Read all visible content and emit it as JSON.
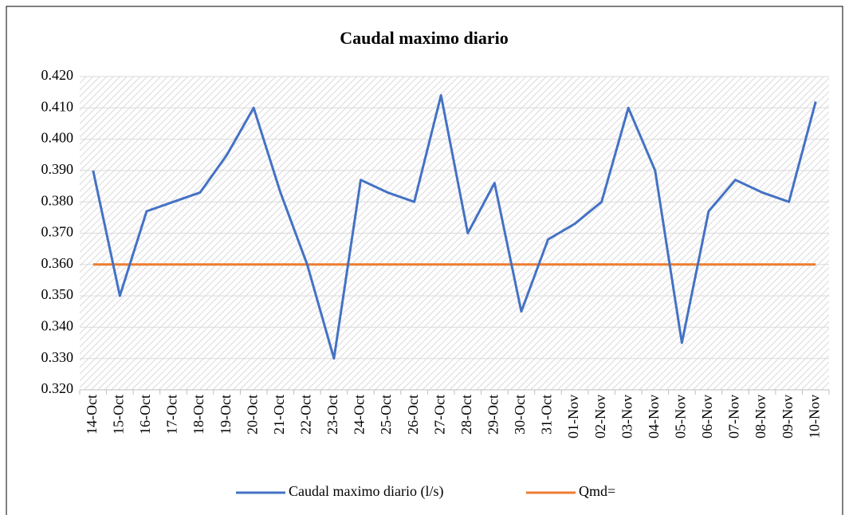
{
  "chart_data": {
    "type": "line",
    "title": "Caudal maximo diario",
    "categories": [
      "14-Oct",
      "15-Oct",
      "16-Oct",
      "17-Oct",
      "18-Oct",
      "19-Oct",
      "20-Oct",
      "21-Oct",
      "22-Oct",
      "23-Oct",
      "24-Oct",
      "25-Oct",
      "26-Oct",
      "27-Oct",
      "28-Oct",
      "29-Oct",
      "30-Oct",
      "31-Oct",
      "01-Nov",
      "02-Nov",
      "03-Nov",
      "04-Nov",
      "05-Nov",
      "06-Nov",
      "07-Nov",
      "08-Nov",
      "09-Nov",
      "10-Nov"
    ],
    "series": [
      {
        "name": "Caudal maximo diario (l/s)",
        "color": "#4472c4",
        "values": [
          0.39,
          0.35,
          0.377,
          0.38,
          0.383,
          0.395,
          0.41,
          0.383,
          0.36,
          0.33,
          0.387,
          0.383,
          0.38,
          0.414,
          0.37,
          0.386,
          0.345,
          0.368,
          0.373,
          0.38,
          0.41,
          0.39,
          0.335,
          0.377,
          0.387,
          0.383,
          0.38,
          0.412
        ]
      },
      {
        "name": "Qmd=",
        "color": "#ed7d31",
        "values": [
          0.36,
          0.36,
          0.36,
          0.36,
          0.36,
          0.36,
          0.36,
          0.36,
          0.36,
          0.36,
          0.36,
          0.36,
          0.36,
          0.36,
          0.36,
          0.36,
          0.36,
          0.36,
          0.36,
          0.36,
          0.36,
          0.36,
          0.36,
          0.36,
          0.36,
          0.36,
          0.36,
          0.36
        ]
      }
    ],
    "ylim": [
      0.32,
      0.42
    ],
    "yticks": [
      {
        "value": 0.32,
        "label": "0.320"
      },
      {
        "value": 0.33,
        "label": "0.330"
      },
      {
        "value": 0.34,
        "label": "0.340"
      },
      {
        "value": 0.35,
        "label": "0.350"
      },
      {
        "value": 0.36,
        "label": "0.360"
      },
      {
        "value": 0.37,
        "label": "0.370"
      },
      {
        "value": 0.38,
        "label": "0.380"
      },
      {
        "value": 0.39,
        "label": "0.390"
      },
      {
        "value": 0.4,
        "label": "0.400"
      },
      {
        "value": 0.41,
        "label": "0.410"
      },
      {
        "value": 0.42,
        "label": "0.420"
      }
    ],
    "grid": true,
    "legend": "bottom"
  }
}
